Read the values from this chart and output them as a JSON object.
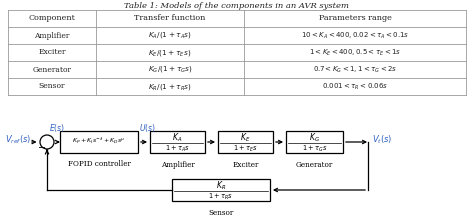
{
  "title": "Table 1: Models of the components in an AVR system",
  "table_headers": [
    "Component",
    "Transfer function",
    "Parameters range"
  ],
  "table_rows": [
    [
      "Amplifier",
      "$K_A/(1+\\tau_A s)$",
      "$10<K_A<400, 0.02<\\tau_A<0.1s$"
    ],
    [
      "Exciter",
      "$K_E/(1+\\tau_E s)$",
      "$1<K_E<400, 0.5<\\tau_E<1s$"
    ],
    [
      "Generator",
      "$K_G/(1+\\tau_G s)$",
      "$0.7<K_G<1, 1<\\tau_G<2s$"
    ],
    [
      "Sensor",
      "$K_R/(1+\\tau_R s)$",
      "$0.001<\\tau_R<0.06s$"
    ]
  ],
  "bg_color": "#ffffff",
  "table_line_color": "#999999",
  "text_color": "#222222",
  "blue_color": "#3060C0",
  "black_color": "#000000",
  "fig_w": 4.74,
  "fig_h": 2.2,
  "dpi": 100
}
